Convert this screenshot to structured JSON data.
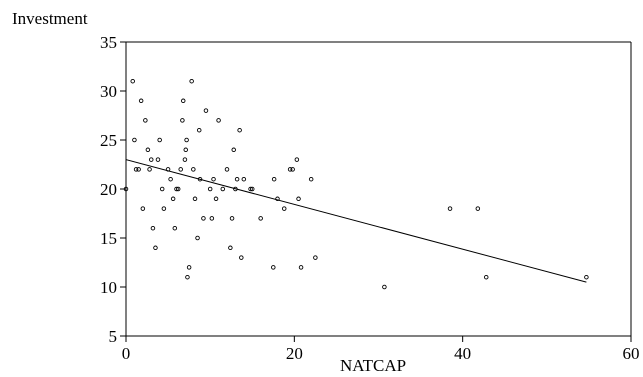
{
  "chart_data": {
    "type": "scatter",
    "title": "",
    "xlabel": "NATCAP",
    "ylabel": "Investment",
    "xlim": [
      0,
      60
    ],
    "ylim": [
      5,
      35
    ],
    "x_ticks": [
      "0",
      "20",
      "40",
      "60"
    ],
    "y_ticks": [
      "5",
      "10",
      "15",
      "20",
      "25",
      "30",
      "35"
    ],
    "grid": false,
    "legend": "none",
    "marker_color": "#000000",
    "series": [
      {
        "points": [
          [
            0.0,
            20
          ],
          [
            0.8,
            31
          ],
          [
            1.0,
            25
          ],
          [
            1.2,
            22
          ],
          [
            1.5,
            22
          ],
          [
            1.8,
            29
          ],
          [
            2.0,
            18
          ],
          [
            2.3,
            27
          ],
          [
            2.6,
            24
          ],
          [
            2.8,
            22
          ],
          [
            3.0,
            23
          ],
          [
            3.2,
            16
          ],
          [
            3.5,
            14
          ],
          [
            3.8,
            23
          ],
          [
            4.0,
            25
          ],
          [
            4.3,
            20
          ],
          [
            4.5,
            18
          ],
          [
            5.0,
            22
          ],
          [
            5.3,
            21
          ],
          [
            5.6,
            19
          ],
          [
            5.8,
            16
          ],
          [
            6.0,
            20
          ],
          [
            6.2,
            20
          ],
          [
            6.5,
            22
          ],
          [
            6.7,
            27
          ],
          [
            6.8,
            29
          ],
          [
            7.0,
            23
          ],
          [
            7.1,
            24
          ],
          [
            7.2,
            25
          ],
          [
            7.3,
            11
          ],
          [
            7.5,
            12
          ],
          [
            7.8,
            31
          ],
          [
            8.0,
            22
          ],
          [
            8.2,
            19
          ],
          [
            8.5,
            15
          ],
          [
            8.7,
            26
          ],
          [
            8.8,
            21
          ],
          [
            9.2,
            17
          ],
          [
            9.5,
            28
          ],
          [
            10.0,
            20
          ],
          [
            10.2,
            17
          ],
          [
            10.4,
            21
          ],
          [
            10.7,
            19
          ],
          [
            11.0,
            27
          ],
          [
            11.5,
            20
          ],
          [
            12.0,
            22
          ],
          [
            12.4,
            14
          ],
          [
            12.6,
            17
          ],
          [
            12.8,
            24
          ],
          [
            13.0,
            20
          ],
          [
            13.2,
            21
          ],
          [
            13.5,
            26
          ],
          [
            13.7,
            13
          ],
          [
            14.0,
            21
          ],
          [
            14.8,
            20
          ],
          [
            15.0,
            20
          ],
          [
            16.0,
            17
          ],
          [
            17.5,
            12
          ],
          [
            17.6,
            21
          ],
          [
            18.0,
            19
          ],
          [
            18.8,
            18
          ],
          [
            19.5,
            22
          ],
          [
            19.8,
            22
          ],
          [
            20.3,
            23
          ],
          [
            20.5,
            19
          ],
          [
            20.8,
            12
          ],
          [
            22.0,
            21
          ],
          [
            22.5,
            13
          ],
          [
            30.7,
            10
          ],
          [
            38.5,
            18
          ],
          [
            41.8,
            18
          ],
          [
            42.8,
            11
          ],
          [
            54.7,
            11
          ]
        ]
      }
    ],
    "trend_line": {
      "x": [
        0,
        54.7
      ],
      "y": [
        23,
        10.5
      ]
    }
  }
}
